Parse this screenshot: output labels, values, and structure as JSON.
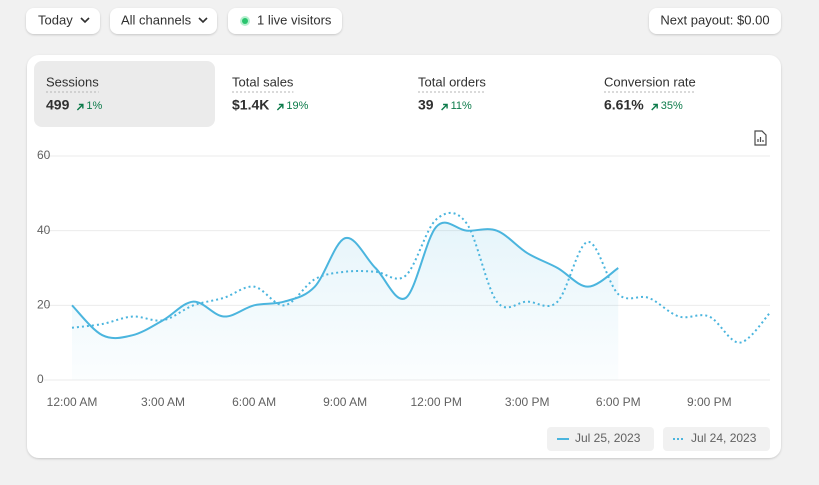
{
  "toolbar": {
    "date": "Today",
    "channels": "All channels",
    "live": "1 live visitors",
    "payout": "Next payout: $0.00"
  },
  "metrics": [
    {
      "label": "Sessions",
      "value": "499",
      "change": "1%"
    },
    {
      "label": "Total sales",
      "value": "$1.4K",
      "change": "19%"
    },
    {
      "label": "Total orders",
      "value": "39",
      "change": "11%"
    },
    {
      "label": "Conversion rate",
      "value": "6.61%",
      "change": "35%"
    }
  ],
  "chart_data": {
    "type": "line",
    "categories": [
      "12:00 AM",
      null,
      null,
      "3:00 AM",
      null,
      null,
      "6:00 AM",
      null,
      null,
      "9:00 AM",
      null,
      null,
      "12:00 PM",
      null,
      null,
      "3:00 PM",
      null,
      null,
      "6:00 PM",
      null,
      null,
      "9:00 PM",
      null,
      null
    ],
    "series": [
      {
        "name": "Jul 25, 2023",
        "color": "#4bb5de",
        "style": "solid",
        "area": true,
        "values": [
          20,
          12,
          12,
          16,
          21,
          17,
          20,
          21,
          25,
          38,
          30,
          22,
          41,
          40,
          40,
          34,
          30,
          25,
          30,
          null,
          null,
          null,
          null,
          null
        ]
      },
      {
        "name": "Jul 24, 2023",
        "color": "#4bb5de",
        "style": "dotted",
        "area": false,
        "values": [
          14,
          15,
          17,
          16,
          20,
          22,
          25,
          20,
          27,
          29,
          29,
          28,
          43,
          42,
          21,
          21,
          21,
          37,
          23,
          22,
          17,
          17,
          10,
          18
        ]
      }
    ],
    "ylim": [
      0,
      60
    ],
    "yticks": [
      0,
      20,
      40,
      60
    ],
    "grid": true
  }
}
